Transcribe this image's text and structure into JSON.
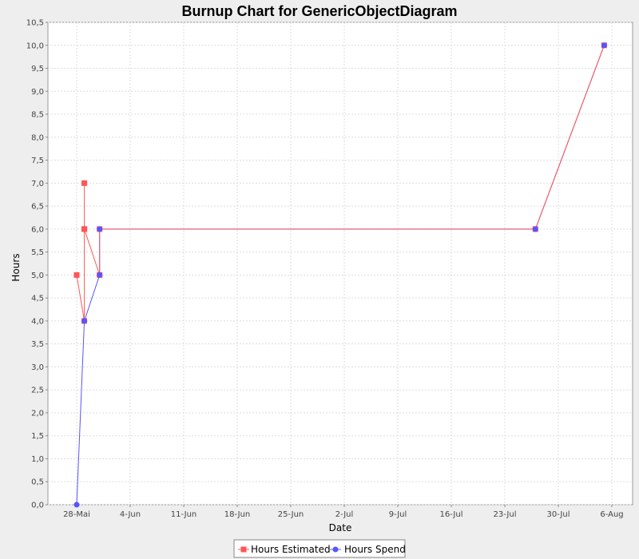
{
  "chart_data": {
    "type": "line",
    "title": "Burnup Chart for GenericObjectDiagram",
    "xlabel": "Date",
    "ylabel": "Hours",
    "x_ticks": [
      "28-Mai",
      "4-Jun",
      "11-Jun",
      "18-Jun",
      "25-Jun",
      "2-Jul",
      "9-Jul",
      "16-Jul",
      "23-Jul",
      "30-Jul",
      "6-Aug"
    ],
    "y_ticks": [
      "0,0",
      "0,5",
      "1,0",
      "1,5",
      "2,0",
      "2,5",
      "3,0",
      "3,5",
      "4,0",
      "4,5",
      "5,0",
      "5,5",
      "6,0",
      "6,5",
      "7,0",
      "7,5",
      "8,0",
      "8,5",
      "9,0",
      "9,5",
      "10,0",
      "10,5"
    ],
    "ylim": [
      0,
      10.5
    ],
    "grid": true,
    "legend_position": "bottom",
    "series": [
      {
        "name": "Hours Estimated",
        "color": "#ff5555",
        "marker": "square",
        "points": [
          {
            "x": "2012-05-28",
            "y": 5
          },
          {
            "x": "2012-05-29",
            "y": 4
          },
          {
            "x": "2012-05-29",
            "y": 6
          },
          {
            "x": "2012-05-29",
            "y": 7
          },
          {
            "x": "2012-05-29",
            "y": 6
          },
          {
            "x": "2012-05-31",
            "y": 5
          },
          {
            "x": "2012-05-31",
            "y": 6
          },
          {
            "x": "2012-07-27",
            "y": 6
          },
          {
            "x": "2012-08-05",
            "y": 10
          }
        ]
      },
      {
        "name": "Hours Spend",
        "color": "#5555ff",
        "marker": "circle",
        "points": [
          {
            "x": "2012-05-28",
            "y": 0
          },
          {
            "x": "2012-05-29",
            "y": 4
          },
          {
            "x": "2012-05-31",
            "y": 5
          },
          {
            "x": "2012-05-31",
            "y": 6
          },
          {
            "x": "2012-07-27",
            "y": 6
          },
          {
            "x": "2012-08-05",
            "y": 10
          }
        ]
      }
    ]
  }
}
